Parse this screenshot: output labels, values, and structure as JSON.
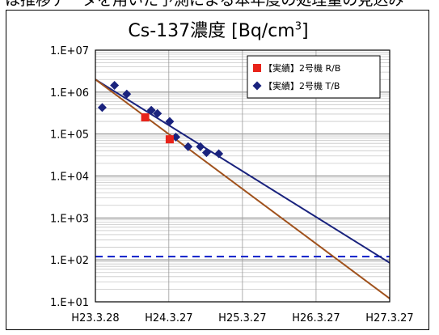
{
  "banner_text": "は推移データを用いた予測による本年度の処理量の見込み",
  "chart_data": {
    "type": "scatter",
    "title_main": "Cs-137濃度 [Bq/cm",
    "title_sup": "3",
    "title_close": "]",
    "y_scale": "log",
    "ylim": [
      10,
      10000000
    ],
    "y_tick_labels": [
      "1.E+07",
      "1.E+06",
      "1.E+05",
      "1.E+04",
      "1.E+03",
      "1.E+02",
      "1.E+01"
    ],
    "x_tick_labels": [
      "H23.3.28",
      "H24.3.27",
      "H25.3.27",
      "H26.3.27",
      "H27.3.27"
    ],
    "xlim": [
      "H23.3.28",
      "H27.3.27"
    ],
    "grid": true,
    "legend_position": "top-right",
    "series": [
      {
        "name": "【実績】2号機 R/B",
        "marker": "square",
        "color": "#e8231a",
        "points": [
          {
            "x": "H23.12",
            "y": 250000
          },
          {
            "x": "H24.4",
            "y": 75000
          }
        ]
      },
      {
        "name": "【実績】2号機 T/B",
        "marker": "diamond",
        "color": "#1a237e",
        "points": [
          {
            "x": "H23.5",
            "y": 430000
          },
          {
            "x": "H23.7",
            "y": 1450000
          },
          {
            "x": "H23.9",
            "y": 900000
          },
          {
            "x": "H24.1",
            "y": 370000
          },
          {
            "x": "H24.2",
            "y": 310000
          },
          {
            "x": "H24.4",
            "y": 200000
          },
          {
            "x": "H24.5",
            "y": 85000
          },
          {
            "x": "H24.7",
            "y": 50000
          },
          {
            "x": "H24.9",
            "y": 50000
          },
          {
            "x": "H24.10",
            "y": 36000
          },
          {
            "x": "H24.12",
            "y": 34000
          }
        ]
      }
    ],
    "trend_lines": [
      {
        "color": "#1a237e",
        "from": {
          "x": "H23.3.28",
          "y": 2000000
        },
        "to": {
          "x": "H27.3.27",
          "y": 85
        }
      },
      {
        "color": "#a0521d",
        "from": {
          "x": "H23.3.28",
          "y": 2000000
        },
        "to": {
          "x": "H27.3.27",
          "y": 12
        }
      }
    ],
    "reference_line": {
      "y": 120,
      "color": "#1a2acc",
      "style": "dashed"
    }
  }
}
